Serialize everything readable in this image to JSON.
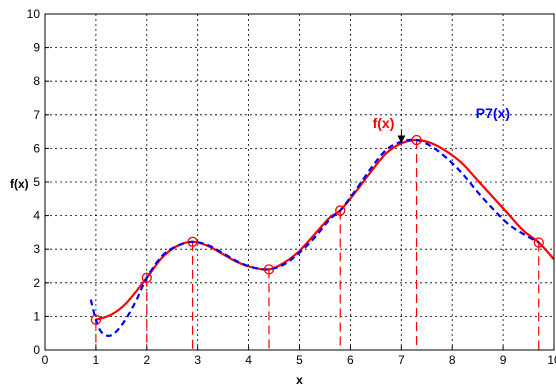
{
  "colors": {
    "f_curve": "#ff0000",
    "p7_curve": "#0000ff",
    "nodes": "#ff0000",
    "grid": "#000000",
    "stems": "#ff0000",
    "arrow": "#000000"
  },
  "chart_data": {
    "type": "line",
    "title": "",
    "xlabel": "x",
    "ylabel": "f(x)",
    "xlim": [
      0,
      10
    ],
    "ylim": [
      0,
      10
    ],
    "xticks": [
      "0",
      "1",
      "2",
      "3",
      "4",
      "5",
      "6",
      "7",
      "8",
      "9",
      "10"
    ],
    "yticks": [
      "0",
      "1",
      "2",
      "3",
      "4",
      "5",
      "6",
      "7",
      "8",
      "9",
      "10"
    ],
    "grid": true,
    "series": [
      {
        "name": "f(x)",
        "style": "solid",
        "color": "#ff0000",
        "x": [
          1.0,
          1.3,
          1.6,
          2.0,
          2.3,
          2.6,
          2.9,
          3.2,
          3.5,
          3.8,
          4.1,
          4.4,
          4.7,
          5.0,
          5.3,
          5.6,
          5.8,
          6.1,
          6.4,
          6.7,
          7.0,
          7.3,
          7.6,
          7.9,
          8.2,
          8.5,
          8.8,
          9.1,
          9.4,
          9.7,
          10.0
        ],
        "y": [
          0.9,
          1.05,
          1.4,
          2.15,
          2.75,
          3.1,
          3.22,
          3.1,
          2.85,
          2.6,
          2.45,
          2.4,
          2.6,
          2.95,
          3.45,
          3.95,
          4.15,
          4.7,
          5.3,
          5.85,
          6.15,
          6.25,
          6.15,
          5.9,
          5.55,
          5.05,
          4.55,
          4.05,
          3.55,
          3.2,
          2.7
        ]
      },
      {
        "name": "P7(x)",
        "style": "dashed",
        "color": "#0000ff",
        "x": [
          0.9,
          1.0,
          1.1,
          1.25,
          1.4,
          1.6,
          1.8,
          2.0,
          2.3,
          2.6,
          2.9,
          3.2,
          3.5,
          3.8,
          4.1,
          4.4,
          4.7,
          5.0,
          5.3,
          5.6,
          5.8,
          6.1,
          6.4,
          6.7,
          7.0,
          7.3,
          7.6,
          7.9,
          8.2,
          8.5,
          8.8,
          9.1,
          9.4,
          9.7
        ],
        "y": [
          1.5,
          0.9,
          0.55,
          0.42,
          0.55,
          0.95,
          1.5,
          2.15,
          2.8,
          3.1,
          3.22,
          3.12,
          2.88,
          2.62,
          2.45,
          2.4,
          2.55,
          2.9,
          3.35,
          3.9,
          4.15,
          4.75,
          5.4,
          5.95,
          6.2,
          6.25,
          6.05,
          5.7,
          5.25,
          4.7,
          4.2,
          3.75,
          3.45,
          3.2
        ]
      }
    ],
    "nodes": {
      "x": [
        1.0,
        2.0,
        2.9,
        4.4,
        5.8,
        7.3,
        9.7
      ],
      "y": [
        0.9,
        2.15,
        3.22,
        2.4,
        4.15,
        6.25,
        3.2
      ]
    },
    "annotations": [
      {
        "text": "f(x)",
        "x": 6.65,
        "y": 6.6,
        "color": "#ff0000",
        "arrow_to": [
          7.0,
          6.15
        ]
      },
      {
        "text": "P7(x)",
        "x": 8.8,
        "y": 6.9,
        "color": "#0000ff"
      }
    ]
  }
}
